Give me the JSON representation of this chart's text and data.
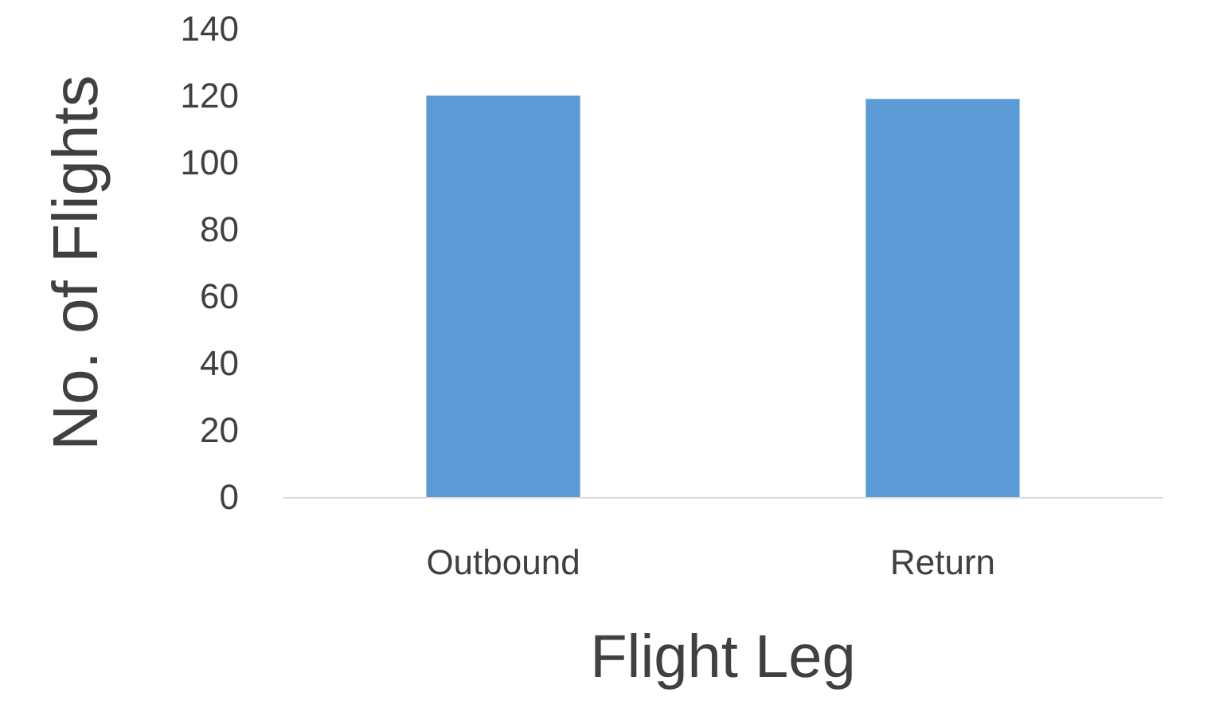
{
  "chart_data": {
    "type": "bar",
    "xlabel": "Flight Leg",
    "ylabel": "No. of Flights",
    "categories": [
      "Outbound",
      "Return"
    ],
    "values": [
      120,
      119
    ],
    "color": "#5b9bd5",
    "ylim": [
      0,
      140
    ],
    "yticks": [
      0,
      20,
      40,
      60,
      80,
      100,
      120,
      140
    ],
    "grid": false
  }
}
